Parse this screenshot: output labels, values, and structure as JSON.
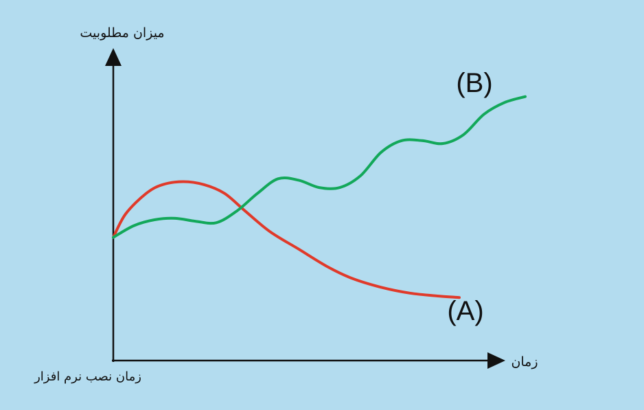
{
  "chart_data": {
    "type": "line",
    "title": "",
    "ylabel": "میزان مطلوبیت",
    "xlabel": "زمان",
    "origin_label": "زمان نصب نرم افزار",
    "grid": false,
    "xlim": [
      0,
      100
    ],
    "ylim": [
      0,
      100
    ],
    "colors": {
      "background": "#b3dcef",
      "axis": "#111111",
      "A": "#e03a2a",
      "B": "#13a85a"
    },
    "series": [
      {
        "name": "(A)",
        "points": [
          [
            0,
            42
          ],
          [
            3,
            50
          ],
          [
            8,
            57
          ],
          [
            12,
            60
          ],
          [
            17,
            61
          ],
          [
            22,
            60
          ],
          [
            27,
            57
          ],
          [
            32,
            51
          ],
          [
            38,
            44
          ],
          [
            45,
            38
          ],
          [
            52,
            32
          ],
          [
            58,
            28
          ],
          [
            65,
            25
          ],
          [
            72,
            23
          ],
          [
            79,
            22
          ],
          [
            84,
            21.5
          ]
        ]
      },
      {
        "name": "(B)",
        "points": [
          [
            0,
            42
          ],
          [
            5,
            46
          ],
          [
            10,
            48
          ],
          [
            15,
            48.5
          ],
          [
            20,
            47.5
          ],
          [
            25,
            47
          ],
          [
            30,
            51
          ],
          [
            35,
            57
          ],
          [
            40,
            62
          ],
          [
            45,
            61.5
          ],
          [
            50,
            59
          ],
          [
            55,
            59
          ],
          [
            60,
            63
          ],
          [
            65,
            71
          ],
          [
            70,
            75
          ],
          [
            75,
            75
          ],
          [
            80,
            74
          ],
          [
            85,
            77
          ],
          [
            90,
            84
          ],
          [
            95,
            88
          ],
          [
            100,
            90
          ]
        ]
      }
    ]
  }
}
